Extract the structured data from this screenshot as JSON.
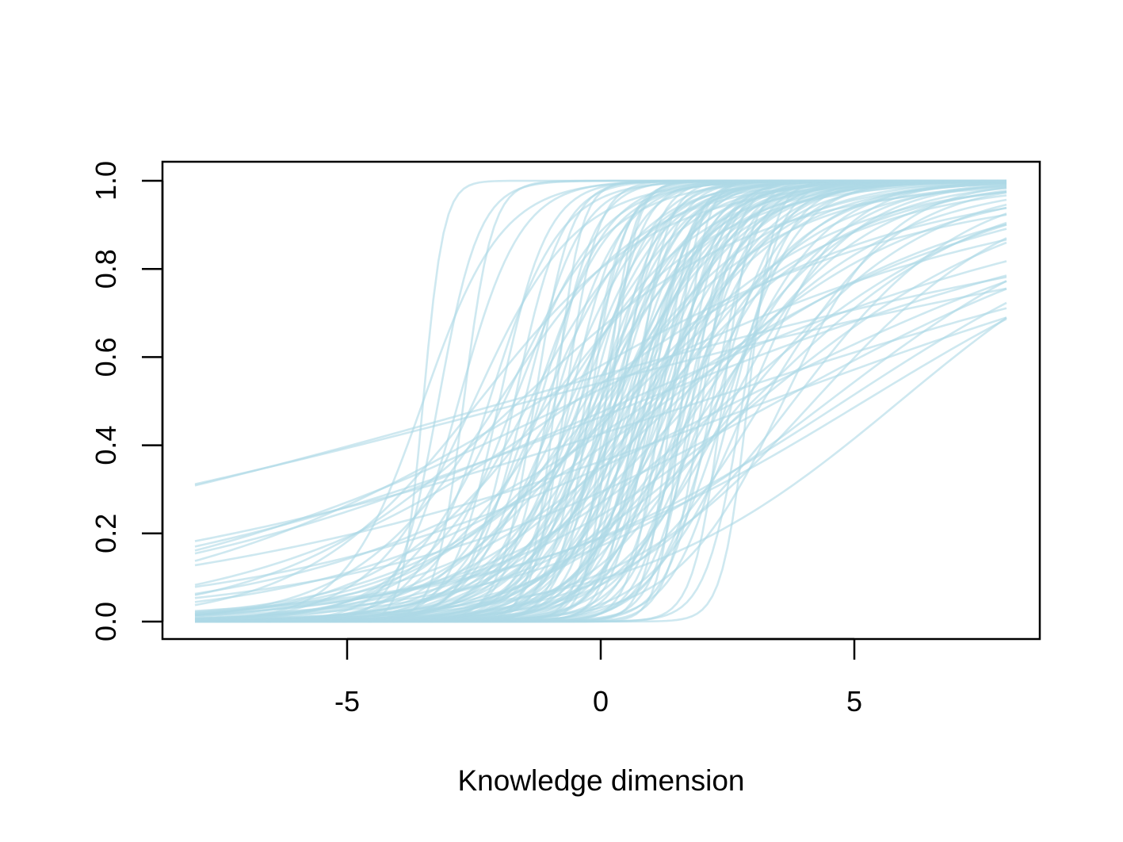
{
  "chart_data": {
    "type": "line",
    "title": "",
    "xlabel": "Knowledge dimension",
    "ylabel": "",
    "xlim": [
      -8,
      8
    ],
    "ylim": [
      0,
      1
    ],
    "x_ticks": [
      -5,
      0,
      5
    ],
    "x_tick_labels": [
      "-5",
      "0",
      "5"
    ],
    "y_ticks": [
      0,
      0.2,
      0.4,
      0.6,
      0.8,
      1
    ],
    "y_tick_labels": [
      "0.0",
      "0.2",
      "0.4",
      "0.6",
      "0.8",
      "1.0"
    ],
    "grid": false,
    "legend": "none",
    "line_color": "#add8e6",
    "line_alpha": 0.6,
    "curve_model": "logistic item characteristic curves",
    "curves": [
      {
        "a": 0.13,
        "b": -1.8
      },
      {
        "a": 0.17,
        "b": 3.3
      },
      {
        "a": 0.15,
        "b": 2.0
      },
      {
        "a": 0.2,
        "b": 0.5
      },
      {
        "a": 0.22,
        "b": -0.5
      },
      {
        "a": 0.25,
        "b": 3.5
      },
      {
        "a": 0.28,
        "b": 5.2
      },
      {
        "a": 0.3,
        "b": 1.0
      },
      {
        "a": 0.32,
        "b": -0.5
      },
      {
        "a": 0.3,
        "b": 4.8
      },
      {
        "a": 0.35,
        "b": 4.5
      },
      {
        "a": 0.38,
        "b": 5.9
      },
      {
        "a": 0.4,
        "b": 2.5
      },
      {
        "a": 0.42,
        "b": 1.5
      },
      {
        "a": 0.45,
        "b": 0.5
      },
      {
        "a": 0.45,
        "b": 3.0
      },
      {
        "a": 0.5,
        "b": 4.2
      },
      {
        "a": 0.5,
        "b": 1.8
      },
      {
        "a": 0.55,
        "b": 0.0
      },
      {
        "a": 0.55,
        "b": 2.8
      },
      {
        "a": 0.6,
        "b": 3.8
      },
      {
        "a": 0.6,
        "b": -1.0
      },
      {
        "a": 0.65,
        "b": 1.2
      },
      {
        "a": 0.65,
        "b": 2.2
      },
      {
        "a": 0.7,
        "b": -2.0
      },
      {
        "a": 0.7,
        "b": 0.8
      },
      {
        "a": 0.75,
        "b": 3.2
      },
      {
        "a": 0.75,
        "b": -0.3
      },
      {
        "a": 0.8,
        "b": 1.6
      },
      {
        "a": 0.8,
        "b": 0.2
      },
      {
        "a": 0.85,
        "b": 2.6
      },
      {
        "a": 0.85,
        "b": -1.4
      },
      {
        "a": 0.9,
        "b": 0.6
      },
      {
        "a": 0.9,
        "b": 1.9
      },
      {
        "a": 0.95,
        "b": -0.6
      },
      {
        "a": 0.95,
        "b": 3.6
      },
      {
        "a": 1.0,
        "b": 1.0
      },
      {
        "a": 1.0,
        "b": -2.5
      },
      {
        "a": 1.0,
        "b": 2.4
      },
      {
        "a": 1.05,
        "b": 0.3
      },
      {
        "a": 1.05,
        "b": -1.1
      },
      {
        "a": 1.1,
        "b": 1.4
      },
      {
        "a": 1.1,
        "b": 0.0
      },
      {
        "a": 1.1,
        "b": 2.9
      },
      {
        "a": 1.15,
        "b": -0.8
      },
      {
        "a": 1.15,
        "b": 0.9
      },
      {
        "a": 1.2,
        "b": 1.7
      },
      {
        "a": 1.2,
        "b": -1.7
      },
      {
        "a": 1.2,
        "b": 0.4
      },
      {
        "a": 1.25,
        "b": 2.1
      },
      {
        "a": 1.25,
        "b": -0.4
      },
      {
        "a": 1.3,
        "b": 1.1
      },
      {
        "a": 1.3,
        "b": -3.5
      },
      {
        "a": 1.35,
        "b": 0.7
      },
      {
        "a": 1.35,
        "b": -1.3
      },
      {
        "a": 1.4,
        "b": 1.5
      },
      {
        "a": 1.4,
        "b": -0.1
      },
      {
        "a": 1.45,
        "b": 2.5
      },
      {
        "a": 1.45,
        "b": -2.2
      },
      {
        "a": 1.5,
        "b": 0.2
      },
      {
        "a": 1.5,
        "b": 1.2
      },
      {
        "a": 1.55,
        "b": -0.9
      },
      {
        "a": 1.6,
        "b": 1.8
      },
      {
        "a": 1.6,
        "b": 0.5
      },
      {
        "a": 1.65,
        "b": -2.8
      },
      {
        "a": 1.7,
        "b": 0.9
      },
      {
        "a": 1.75,
        "b": -0.2
      },
      {
        "a": 1.8,
        "b": 1.3
      },
      {
        "a": 1.8,
        "b": 2.6
      },
      {
        "a": 1.85,
        "b": -1.5
      },
      {
        "a": 1.9,
        "b": 0.1
      },
      {
        "a": 1.95,
        "b": 1.7
      },
      {
        "a": 2.0,
        "b": -0.6
      },
      {
        "a": 2.0,
        "b": 0.8
      },
      {
        "a": 2.1,
        "b": 1.9
      },
      {
        "a": 2.1,
        "b": -2.0
      },
      {
        "a": 2.2,
        "b": 0.3
      },
      {
        "a": 2.2,
        "b": 1.4
      },
      {
        "a": 2.3,
        "b": -1.0
      },
      {
        "a": 2.3,
        "b": 2.2
      },
      {
        "a": 2.4,
        "b": 0.6
      },
      {
        "a": 2.5,
        "b": -3.2
      },
      {
        "a": 2.5,
        "b": 1.6
      },
      {
        "a": 2.6,
        "b": -0.3
      },
      {
        "a": 2.7,
        "b": 1.0
      },
      {
        "a": 2.8,
        "b": 2.8
      },
      {
        "a": 2.9,
        "b": -1.3
      },
      {
        "a": 3.0,
        "b": 0.4
      },
      {
        "a": 3.0,
        "b": 2.0
      },
      {
        "a": 3.2,
        "b": -0.7
      },
      {
        "a": 3.3,
        "b": 1.2
      },
      {
        "a": 3.5,
        "b": 2.4
      },
      {
        "a": 3.6,
        "b": -2.7
      },
      {
        "a": 3.8,
        "b": 0.1
      },
      {
        "a": 4.0,
        "b": -0.9
      },
      {
        "a": 4.0,
        "b": 2.9
      },
      {
        "a": 4.5,
        "b": 1.6
      },
      {
        "a": 5.0,
        "b": -3.5
      },
      {
        "a": 0.12,
        "b": -1.4
      },
      {
        "a": 0.18,
        "b": 0.8
      },
      {
        "a": 0.23,
        "b": 2.7
      },
      {
        "a": 0.27,
        "b": -1.2
      },
      {
        "a": 0.33,
        "b": 1.3
      },
      {
        "a": 0.37,
        "b": 3.1
      },
      {
        "a": 0.43,
        "b": -1.6
      },
      {
        "a": 0.48,
        "b": 0.4
      },
      {
        "a": 0.53,
        "b": 1.1
      },
      {
        "a": 0.58,
        "b": -2.4
      },
      {
        "a": 0.63,
        "b": 0.1
      },
      {
        "a": 0.68,
        "b": 2.0
      },
      {
        "a": 0.73,
        "b": -0.8
      },
      {
        "a": 0.78,
        "b": 0.9
      },
      {
        "a": 0.83,
        "b": 2.3
      },
      {
        "a": 0.88,
        "b": -0.1
      },
      {
        "a": 0.93,
        "b": 1.2
      },
      {
        "a": 0.98,
        "b": -1.9
      },
      {
        "a": 1.08,
        "b": 0.5
      },
      {
        "a": 1.18,
        "b": 1.3
      },
      {
        "a": 1.28,
        "b": -0.5
      },
      {
        "a": 1.38,
        "b": 0.0
      },
      {
        "a": 1.48,
        "b": 1.0
      },
      {
        "a": 1.58,
        "b": -1.2
      },
      {
        "a": 1.68,
        "b": 2.3
      },
      {
        "a": 1.78,
        "b": 0.7
      },
      {
        "a": 1.88,
        "b": -0.4
      },
      {
        "a": 1.98,
        "b": 1.1
      },
      {
        "a": 2.15,
        "b": -1.7
      },
      {
        "a": 2.35,
        "b": 0.9
      },
      {
        "a": 2.55,
        "b": 0.0
      },
      {
        "a": 2.75,
        "b": 1.8
      },
      {
        "a": 2.95,
        "b": -0.2
      },
      {
        "a": 3.4,
        "b": 0.7
      },
      {
        "a": 3.9,
        "b": 1.4
      },
      {
        "a": 4.2,
        "b": 0.2
      },
      {
        "a": 1.0,
        "b": -0.2
      },
      {
        "a": 1.3,
        "b": 0.6
      },
      {
        "a": 1.6,
        "b": 0.3
      },
      {
        "a": 0.9,
        "b": 0.3
      }
    ]
  }
}
